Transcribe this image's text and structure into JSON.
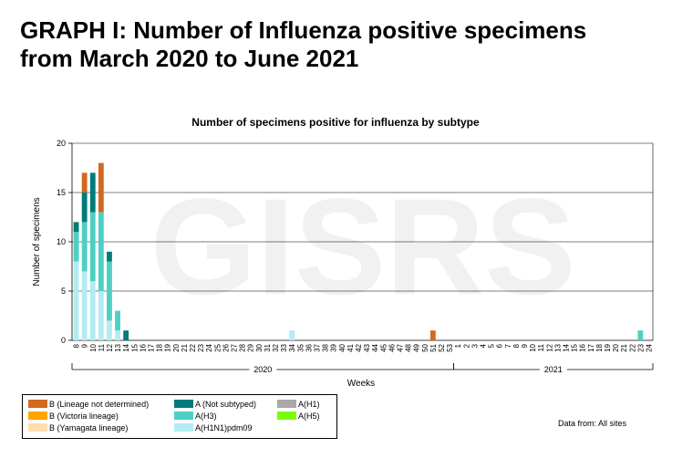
{
  "page": {
    "title_line1": "GRAPH I: Number of Influenza positive specimens",
    "title_line2": "from March 2020 to June 2021",
    "data_source": "Data from: All sites"
  },
  "chart_data": {
    "type": "bar",
    "stacked": true,
    "title": "Number of specimens positive for influenza by subtype",
    "xlabel": "Weeks",
    "ylabel": "Number of specimens",
    "ylim": [
      0,
      20
    ],
    "yticks": [
      0,
      5,
      10,
      15,
      20
    ],
    "grid": true,
    "watermark": "GISRS",
    "categories": [
      "8",
      "9",
      "10",
      "11",
      "12",
      "13",
      "14",
      "15",
      "16",
      "17",
      "18",
      "19",
      "20",
      "21",
      "22",
      "23",
      "24",
      "25",
      "26",
      "27",
      "28",
      "29",
      "30",
      "31",
      "32",
      "33",
      "34",
      "35",
      "36",
      "37",
      "38",
      "39",
      "40",
      "41",
      "42",
      "43",
      "44",
      "45",
      "46",
      "47",
      "48",
      "49",
      "50",
      "51",
      "52",
      "53",
      "1",
      "2",
      "3",
      "4",
      "5",
      "6",
      "7",
      "8",
      "9",
      "10",
      "11",
      "12",
      "13",
      "14",
      "15",
      "16",
      "17",
      "18",
      "19",
      "20",
      "21",
      "22",
      "23",
      "24"
    ],
    "year_groups": [
      {
        "label": "2020",
        "from": "8",
        "to": "53"
      },
      {
        "label": "2021",
        "from": "1",
        "to": "24"
      }
    ],
    "series": [
      {
        "name": "A(H1N1)pdm09",
        "color": "#b2ebf2",
        "values": [
          8,
          7,
          6,
          5,
          2,
          1,
          0,
          0,
          0,
          0,
          0,
          0,
          0,
          0,
          0,
          0,
          0,
          0,
          0,
          0,
          0,
          0,
          0,
          0,
          0,
          0,
          1,
          0,
          0,
          0,
          0,
          0,
          0,
          0,
          0,
          0,
          0,
          0,
          0,
          0,
          0,
          0,
          0,
          0,
          0,
          0,
          0,
          0,
          0,
          0,
          0,
          0,
          0,
          0,
          0,
          0,
          0,
          0,
          0,
          0,
          0,
          0,
          0,
          0,
          0,
          0,
          0,
          0,
          0,
          0
        ]
      },
      {
        "name": "A(H3)",
        "color": "#4dd0c4",
        "values": [
          3,
          5,
          7,
          8,
          6,
          2,
          0,
          0,
          0,
          0,
          0,
          0,
          0,
          0,
          0,
          0,
          0,
          0,
          0,
          0,
          0,
          0,
          0,
          0,
          0,
          0,
          0,
          0,
          0,
          0,
          0,
          0,
          0,
          0,
          0,
          0,
          0,
          0,
          0,
          0,
          0,
          0,
          0,
          0,
          0,
          0,
          0,
          0,
          0,
          0,
          0,
          0,
          0,
          0,
          0,
          0,
          0,
          0,
          0,
          0,
          0,
          0,
          0,
          0,
          0,
          0,
          0,
          0,
          1,
          0
        ]
      },
      {
        "name": "A (Not subtyped)",
        "color": "#007b7b",
        "values": [
          1,
          3,
          4,
          0,
          1,
          0,
          1,
          0,
          0,
          0,
          0,
          0,
          0,
          0,
          0,
          0,
          0,
          0,
          0,
          0,
          0,
          0,
          0,
          0,
          0,
          0,
          0,
          0,
          0,
          0,
          0,
          0,
          0,
          0,
          0,
          0,
          0,
          0,
          0,
          0,
          0,
          0,
          0,
          0,
          0,
          0,
          0,
          0,
          0,
          0,
          0,
          0,
          0,
          0,
          0,
          0,
          0,
          0,
          0,
          0,
          0,
          0,
          0,
          0,
          0,
          0,
          0,
          0,
          0,
          0
        ]
      },
      {
        "name": "B (Lineage not determined)",
        "color": "#d2691e",
        "values": [
          0,
          2,
          0,
          5,
          0,
          0,
          0,
          0,
          0,
          0,
          0,
          0,
          0,
          0,
          0,
          0,
          0,
          0,
          0,
          0,
          0,
          0,
          0,
          0,
          0,
          0,
          0,
          0,
          0,
          0,
          0,
          0,
          0,
          0,
          0,
          0,
          0,
          0,
          0,
          0,
          0,
          0,
          0,
          1,
          0,
          0,
          0,
          0,
          0,
          0,
          0,
          0,
          0,
          0,
          0,
          0,
          0,
          0,
          0,
          0,
          0,
          0,
          0,
          0,
          0,
          0,
          0,
          0,
          0,
          0
        ]
      }
    ],
    "legend": [
      {
        "label": "B (Lineage not determined)",
        "color": "#d2691e"
      },
      {
        "label": "B (Victoria lineage)",
        "color": "#ffa500"
      },
      {
        "label": "B (Yamagata lineage)",
        "color": "#ffdead"
      },
      {
        "label": "A (Not subtyped)",
        "color": "#007b7b"
      },
      {
        "label": "A(H3)",
        "color": "#4dd0c4"
      },
      {
        "label": "A(H1N1)pdm09",
        "color": "#b2ebf2"
      },
      {
        "label": "A(H1)",
        "color": "#a9a9a9"
      },
      {
        "label": "A(H5)",
        "color": "#7cfc00"
      }
    ],
    "legend_placement": "bottom-left"
  }
}
